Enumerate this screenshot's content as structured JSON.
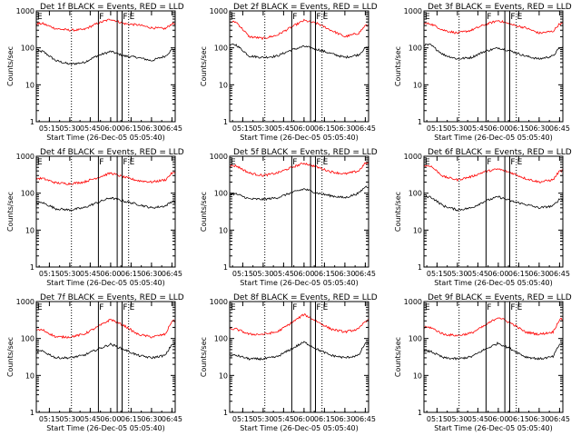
{
  "chart_data": [
    {
      "type": "line",
      "title": "Det 1f BLACK = Events, RED = LLD",
      "xlabel": "Start Time (26-Dec-05 05:05:40)",
      "ylabel": "Counts/sec",
      "y_scale": "log",
      "ylim": [
        1,
        1000
      ],
      "x_ticks": [
        "05:15",
        "05:30",
        "05:45",
        "06:00",
        "06:15",
        "06:30",
        "06:45"
      ],
      "y_ticks": [
        "1",
        "10",
        "100",
        "1000"
      ],
      "grid": false,
      "markers": {
        "solid": [
          5.85,
          6.08,
          6.14
        ],
        "dotted": [
          5.52,
          6.22
        ],
        "labels": [
          "F",
          "F",
          "E"
        ]
      },
      "x": [
        5.17,
        5.33,
        5.5,
        5.67,
        5.83,
        6.0,
        6.17,
        6.33,
        6.5,
        6.67,
        6.75
      ],
      "series": [
        {
          "name": "Events",
          "color": "#000000",
          "values": [
            80,
            45,
            36,
            40,
            60,
            80,
            60,
            55,
            45,
            60,
            90
          ]
        },
        {
          "name": "LLD",
          "color": "#ff0000",
          "values": [
            450,
            330,
            300,
            310,
            450,
            600,
            450,
            420,
            350,
            330,
            450
          ]
        }
      ]
    },
    {
      "type": "line",
      "title": "Det 2f BLACK = Events, RED = LLD",
      "xlabel": "Start Time (26-Dec-05 05:05:40)",
      "ylabel": "Counts/sec",
      "y_scale": "log",
      "ylim": [
        1,
        1000
      ],
      "x_ticks": [
        "05:15",
        "05:30",
        "05:45",
        "06:00",
        "06:15",
        "06:30",
        "06:45"
      ],
      "y_ticks": [
        "1",
        "10",
        "100",
        "1000"
      ],
      "grid": false,
      "markers": {
        "solid": [
          5.85,
          6.08,
          6.14
        ],
        "dotted": [
          5.52,
          6.22
        ],
        "labels": [
          "F",
          "F",
          "E"
        ]
      },
      "x": [
        5.17,
        5.33,
        5.5,
        5.67,
        5.83,
        6.0,
        6.17,
        6.33,
        6.5,
        6.67,
        6.75
      ],
      "series": [
        {
          "name": "Events",
          "color": "#000000",
          "values": [
            120,
            60,
            55,
            60,
            85,
            110,
            90,
            70,
            55,
            65,
            100
          ]
        },
        {
          "name": "LLD",
          "color": "#ff0000",
          "values": [
            500,
            200,
            180,
            220,
            350,
            550,
            450,
            300,
            200,
            250,
            400
          ]
        }
      ]
    },
    {
      "type": "line",
      "title": "Det 3f BLACK = Events, RED = LLD",
      "xlabel": "Start Time (26-Dec-05 05:05:40)",
      "ylabel": "Counts/sec",
      "y_scale": "log",
      "ylim": [
        1,
        1000
      ],
      "x_ticks": [
        "05:15",
        "05:30",
        "05:45",
        "06:00",
        "06:15",
        "06:30",
        "06:45"
      ],
      "y_ticks": [
        "1",
        "10",
        "100",
        "1000"
      ],
      "grid": false,
      "markers": {
        "solid": [
          5.85,
          6.08,
          6.14
        ],
        "dotted": [
          5.52,
          6.22
        ],
        "labels": [
          "F",
          "F",
          "E"
        ]
      },
      "x": [
        5.17,
        5.33,
        5.5,
        5.67,
        5.83,
        6.0,
        6.17,
        6.33,
        6.5,
        6.67,
        6.75
      ],
      "series": [
        {
          "name": "Events",
          "color": "#000000",
          "values": [
            120,
            65,
            50,
            55,
            80,
            100,
            80,
            60,
            50,
            60,
            100
          ]
        },
        {
          "name": "LLD",
          "color": "#ff0000",
          "values": [
            450,
            300,
            250,
            300,
            420,
            550,
            420,
            350,
            250,
            280,
            450
          ]
        }
      ]
    },
    {
      "type": "line",
      "title": "Det 4f BLACK = Events, RED = LLD",
      "xlabel": "Start Time (26-Dec-05 05:05:40)",
      "ylabel": "Counts/sec",
      "y_scale": "log",
      "ylim": [
        1,
        1000
      ],
      "x_ticks": [
        "05:15",
        "05:30",
        "05:45",
        "06:00",
        "06:15",
        "06:30",
        "06:45"
      ],
      "y_ticks": [
        "1",
        "10",
        "100",
        "1000"
      ],
      "grid": false,
      "markers": {
        "solid": [
          5.85,
          6.08,
          6.14
        ],
        "dotted": [
          5.52,
          6.22
        ],
        "labels": [
          "F",
          "F",
          "E"
        ]
      },
      "x": [
        5.17,
        5.33,
        5.5,
        5.67,
        5.83,
        6.0,
        6.17,
        6.33,
        6.5,
        6.67,
        6.75
      ],
      "series": [
        {
          "name": "Events",
          "color": "#000000",
          "values": [
            55,
            38,
            35,
            40,
            55,
            75,
            60,
            50,
            40,
            45,
            60
          ]
        },
        {
          "name": "LLD",
          "color": "#ff0000",
          "values": [
            250,
            190,
            180,
            200,
            260,
            350,
            270,
            220,
            200,
            230,
            350
          ]
        }
      ]
    },
    {
      "type": "line",
      "title": "Det 5f BLACK = Events, RED = LLD",
      "xlabel": "Start Time (26-Dec-05 05:05:40)",
      "ylabel": "Counts/sec",
      "y_scale": "log",
      "ylim": [
        1,
        1000
      ],
      "x_ticks": [
        "05:15",
        "05:30",
        "05:45",
        "06:00",
        "06:15",
        "06:30",
        "06:45"
      ],
      "y_ticks": [
        "1",
        "10",
        "100",
        "1000"
      ],
      "grid": false,
      "markers": {
        "solid": [
          5.85,
          6.08,
          6.14
        ],
        "dotted": [
          5.52,
          6.22
        ],
        "labels": [
          "F",
          "F",
          "E"
        ]
      },
      "x": [
        5.17,
        5.33,
        5.5,
        5.67,
        5.83,
        6.0,
        6.17,
        6.33,
        6.5,
        6.67,
        6.75
      ],
      "series": [
        {
          "name": "Events",
          "color": "#000000",
          "values": [
            95,
            70,
            68,
            75,
            100,
            130,
            100,
            85,
            75,
            100,
            150
          ]
        },
        {
          "name": "LLD",
          "color": "#ff0000",
          "values": [
            550,
            350,
            300,
            350,
            480,
            650,
            500,
            380,
            330,
            400,
            650
          ]
        }
      ]
    },
    {
      "type": "line",
      "title": "Det 6f BLACK = Events, RED = LLD",
      "xlabel": "Start Time (26-Dec-05 05:05:40)",
      "ylabel": "Counts/sec",
      "y_scale": "log",
      "ylim": [
        1,
        1000
      ],
      "x_ticks": [
        "05:15",
        "05:30",
        "05:45",
        "06:00",
        "06:15",
        "06:30",
        "06:45"
      ],
      "y_ticks": [
        "1",
        "10",
        "100",
        "1000"
      ],
      "grid": false,
      "markers": {
        "solid": [
          5.85,
          6.08,
          6.14
        ],
        "dotted": [
          5.52,
          6.22
        ],
        "labels": [
          "F",
          "F",
          "E"
        ]
      },
      "x": [
        5.17,
        5.33,
        5.5,
        5.67,
        5.83,
        6.0,
        6.17,
        6.33,
        6.5,
        6.67,
        6.75
      ],
      "series": [
        {
          "name": "Events",
          "color": "#000000",
          "values": [
            80,
            45,
            35,
            40,
            60,
            80,
            60,
            50,
            40,
            45,
            70
          ]
        },
        {
          "name": "LLD",
          "color": "#ff0000",
          "values": [
            550,
            280,
            230,
            280,
            380,
            450,
            350,
            250,
            200,
            230,
            400
          ]
        }
      ]
    },
    {
      "type": "line",
      "title": "Det 7f BLACK = Events, RED = LLD",
      "xlabel": "Start Time (26-Dec-05 05:05:40)",
      "ylabel": "Counts/sec",
      "y_scale": "log",
      "ylim": [
        1,
        1000
      ],
      "x_ticks": [
        "05:15",
        "05:30",
        "05:45",
        "06:00",
        "06:15",
        "06:30",
        "06:45"
      ],
      "y_ticks": [
        "1",
        "10",
        "100",
        "1000"
      ],
      "grid": false,
      "markers": {
        "solid": [
          5.85,
          6.08,
          6.14
        ],
        "dotted": [
          5.52,
          6.22
        ],
        "labels": [
          "F",
          "F",
          "E"
        ]
      },
      "x": [
        5.17,
        5.33,
        5.5,
        5.67,
        5.83,
        6.0,
        6.17,
        6.33,
        6.5,
        6.67,
        6.75
      ],
      "series": [
        {
          "name": "Events",
          "color": "#000000",
          "values": [
            45,
            30,
            30,
            35,
            50,
            70,
            50,
            35,
            30,
            35,
            70
          ]
        },
        {
          "name": "LLD",
          "color": "#ff0000",
          "values": [
            170,
            110,
            110,
            130,
            200,
            330,
            220,
            130,
            110,
            130,
            300
          ]
        }
      ]
    },
    {
      "type": "line",
      "title": "Det 8f BLACK = Events, RED = LLD",
      "xlabel": "Start Time (26-Dec-05 05:05:40)",
      "ylabel": "Counts/sec",
      "y_scale": "log",
      "ylim": [
        1,
        1000
      ],
      "x_ticks": [
        "05:15",
        "05:30",
        "05:45",
        "06:00",
        "06:15",
        "06:30",
        "06:45"
      ],
      "y_ticks": [
        "1",
        "10",
        "100",
        "1000"
      ],
      "grid": false,
      "markers": {
        "solid": [
          5.85,
          6.08,
          6.14
        ],
        "dotted": [
          5.52,
          6.22
        ],
        "labels": [
          "F",
          "F",
          "E"
        ]
      },
      "x": [
        5.17,
        5.33,
        5.5,
        5.67,
        5.83,
        6.0,
        6.17,
        6.33,
        6.5,
        6.67,
        6.75
      ],
      "series": [
        {
          "name": "Events",
          "color": "#000000",
          "values": [
            35,
            28,
            28,
            32,
            50,
            80,
            50,
            35,
            30,
            35,
            75
          ]
        },
        {
          "name": "LLD",
          "color": "#ff0000",
          "values": [
            180,
            130,
            130,
            150,
            250,
            450,
            280,
            180,
            150,
            180,
            300
          ]
        }
      ]
    },
    {
      "type": "line",
      "title": "Det 9f BLACK = Events, RED = LLD",
      "xlabel": "Start Time (26-Dec-05 05:05:40)",
      "ylabel": "Counts/sec",
      "y_scale": "log",
      "ylim": [
        1,
        1000
      ],
      "x_ticks": [
        "05:15",
        "05:30",
        "05:45",
        "06:00",
        "06:15",
        "06:30",
        "06:45"
      ],
      "y_ticks": [
        "1",
        "10",
        "100",
        "1000"
      ],
      "grid": false,
      "markers": {
        "solid": [
          5.85,
          6.08,
          6.14
        ],
        "dotted": [
          5.52,
          6.22
        ],
        "labels": [
          "F",
          "F",
          "E"
        ]
      },
      "x": [
        5.17,
        5.33,
        5.5,
        5.67,
        5.83,
        6.0,
        6.17,
        6.33,
        6.5,
        6.67,
        6.75
      ],
      "series": [
        {
          "name": "Events",
          "color": "#000000",
          "values": [
            45,
            30,
            28,
            32,
            50,
            75,
            50,
            32,
            28,
            32,
            70
          ]
        },
        {
          "name": "LLD",
          "color": "#ff0000",
          "values": [
            200,
            130,
            120,
            140,
            220,
            380,
            250,
            150,
            130,
            150,
            330
          ]
        }
      ]
    }
  ]
}
